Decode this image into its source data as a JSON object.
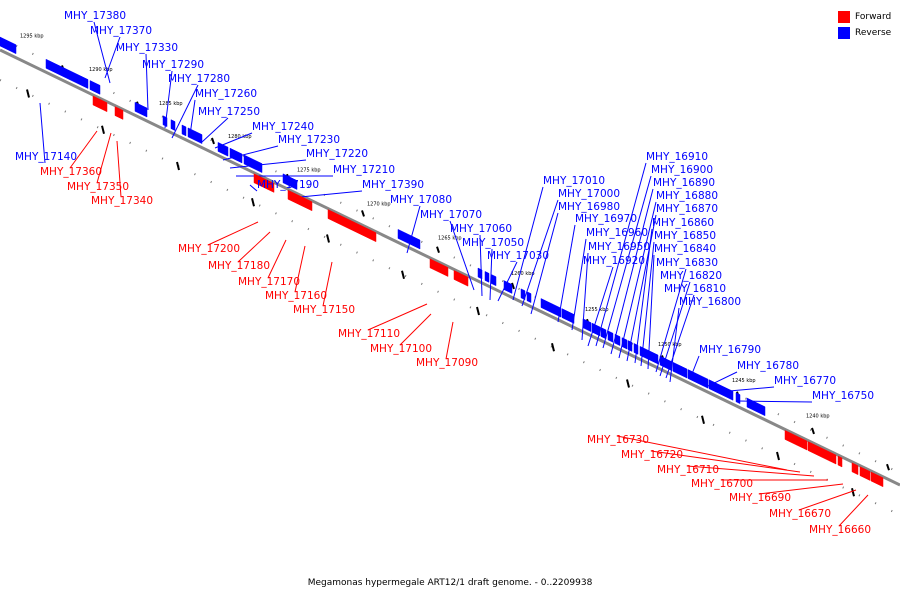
{
  "caption": "Megamonas hypermegale ART12/1 draft genome. - 0..2209938",
  "legend": [
    {
      "label": "Forward",
      "color": "#ff0000"
    },
    {
      "label": "Reverse",
      "color": "#0000ff"
    }
  ],
  "colors": {
    "forward": "#ff0000",
    "reverse": "#0000ff",
    "axis": "#888888",
    "ticks": "#000000"
  },
  "scale_labels": [
    "1295 kbp",
    "1290 kbp",
    "1285 kbp",
    "1280 kbp",
    "1275 kbp",
    "1270 kbp",
    "1265 kbp",
    "1260 kbp",
    "1255 kbp",
    "1250 kbp",
    "1245 kbp",
    "1240 kbp"
  ],
  "reverse_genes": [
    "MHY_17380",
    "MHY_17370",
    "MHY_17330",
    "MHY_17290",
    "MHY_17280",
    "MHY_17260",
    "MHY_17250",
    "MHY_17240",
    "MHY_17230",
    "MHY_17220",
    "MHY_17210",
    "MHY_17190",
    "MHY_17390",
    "MHY_17140",
    "MHY_17080",
    "MHY_17070",
    "MHY_17060",
    "MHY_17050",
    "MHY_17030",
    "MHY_17010",
    "MHY_17000",
    "MHY_16980",
    "MHY_16970",
    "MHY_16960",
    "MHY_16950",
    "MHY_16920",
    "MHY_16910",
    "MHY_16900",
    "MHY_16890",
    "MHY_16880",
    "MHY_16870",
    "MHY_16860",
    "MHY_16850",
    "MHY_16840",
    "MHY_16830",
    "MHY_16820",
    "MHY_16810",
    "MHY_16800",
    "MHY_16790",
    "MHY_16780",
    "MHY_16770",
    "MHY_16750"
  ],
  "forward_genes": [
    "MHY_17360",
    "MHY_17350",
    "MHY_17340",
    "MHY_17200",
    "MHY_17180",
    "MHY_17170",
    "MHY_17160",
    "MHY_17150",
    "MHY_17110",
    "MHY_17100",
    "MHY_17090",
    "MHY_16730",
    "MHY_16720",
    "MHY_16710",
    "MHY_16700",
    "MHY_16690",
    "MHY_16670",
    "MHY_16660"
  ]
}
